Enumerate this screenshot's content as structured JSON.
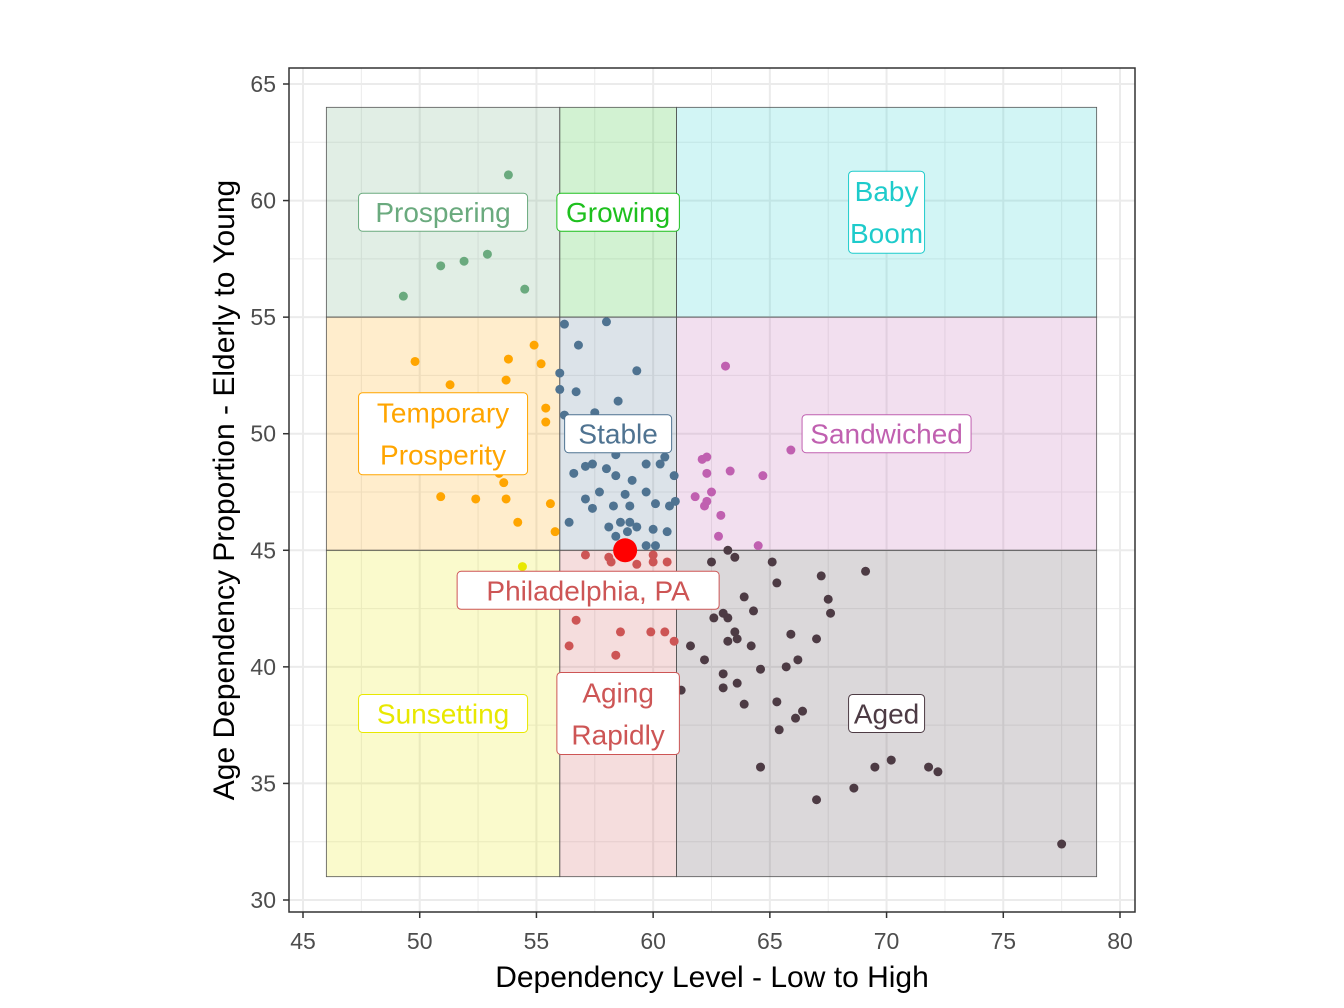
{
  "chart_data": {
    "type": "scatter",
    "title": "",
    "xlabel": "Dependency Level - Low to High",
    "ylabel": "Age Dependency Proportion - Elderly to Young",
    "xlim": [
      45,
      80
    ],
    "ylim": [
      30,
      65
    ],
    "xticks": [
      45,
      50,
      55,
      60,
      65,
      70,
      75,
      80
    ],
    "yticks": [
      30,
      35,
      40,
      45,
      50,
      55,
      60,
      65
    ],
    "grid": true,
    "regions": [
      {
        "name": "Prospering",
        "lines": [
          "Prospering"
        ],
        "color": "#6aaa7e",
        "xmin": 46,
        "xmax": 56,
        "ymin": 55,
        "ymax": 64,
        "points": [
          [
            53.8,
            61.1
          ],
          [
            54.4,
            59.8
          ],
          [
            50.9,
            57.2
          ],
          [
            51.9,
            57.4
          ],
          [
            52.9,
            57.7
          ],
          [
            54.5,
            56.2
          ],
          [
            49.3,
            55.9
          ]
        ]
      },
      {
        "name": "Growing",
        "lines": [
          "Growing"
        ],
        "color": "#1ec01e",
        "xmin": 56,
        "xmax": 61,
        "ymin": 55,
        "ymax": 64,
        "points": []
      },
      {
        "name": "Baby Boom",
        "lines": [
          "Baby",
          "Boom"
        ],
        "color": "#1ecbcb",
        "xmin": 61,
        "xmax": 79,
        "ymin": 55,
        "ymax": 64,
        "points": []
      },
      {
        "name": "Temporary Prosperity",
        "lines": [
          "Temporary",
          "Prosperity"
        ],
        "color": "#ffa500",
        "xmin": 46,
        "xmax": 56,
        "ymin": 45,
        "ymax": 55,
        "points": [
          [
            49.8,
            53.1
          ],
          [
            54.9,
            53.8
          ],
          [
            53.8,
            53.2
          ],
          [
            55.2,
            53.0
          ],
          [
            53.7,
            52.3
          ],
          [
            51.3,
            52.1
          ],
          [
            55.4,
            51.1
          ],
          [
            55.4,
            50.5
          ],
          [
            53.6,
            47.9
          ],
          [
            53.4,
            48.3
          ],
          [
            50.9,
            47.3
          ],
          [
            52.4,
            47.2
          ],
          [
            53.7,
            47.2
          ],
          [
            55.6,
            47.0
          ],
          [
            54.2,
            46.2
          ],
          [
            55.8,
            45.8
          ]
        ]
      },
      {
        "name": "Stable",
        "lines": [
          "Stable"
        ],
        "color": "#4f7391",
        "xmin": 56,
        "xmax": 61,
        "ymin": 45,
        "ymax": 55,
        "points": [
          [
            56.2,
            54.7
          ],
          [
            58.0,
            54.8
          ],
          [
            56.8,
            53.8
          ],
          [
            59.3,
            52.7
          ],
          [
            56.0,
            52.6
          ],
          [
            56.0,
            51.9
          ],
          [
            56.7,
            51.8
          ],
          [
            58.5,
            51.4
          ],
          [
            56.2,
            50.8
          ],
          [
            57.5,
            50.9
          ],
          [
            58.4,
            49.1
          ],
          [
            60.5,
            49.0
          ],
          [
            60.3,
            48.7
          ],
          [
            59.7,
            48.7
          ],
          [
            57.4,
            48.7
          ],
          [
            57.1,
            48.6
          ],
          [
            58.0,
            48.5
          ],
          [
            56.6,
            48.3
          ],
          [
            58.4,
            48.2
          ],
          [
            59.1,
            48.0
          ],
          [
            60.9,
            48.2
          ],
          [
            57.7,
            47.5
          ],
          [
            58.8,
            47.4
          ],
          [
            59.7,
            47.5
          ],
          [
            57.1,
            47.2
          ],
          [
            57.4,
            46.8
          ],
          [
            58.3,
            46.9
          ],
          [
            59.0,
            46.9
          ],
          [
            60.1,
            47.0
          ],
          [
            60.7,
            46.9
          ],
          [
            60.95,
            47.1
          ],
          [
            56.4,
            46.2
          ],
          [
            58.1,
            46.0
          ],
          [
            58.6,
            46.2
          ],
          [
            59.0,
            46.2
          ],
          [
            59.3,
            46.0
          ],
          [
            58.4,
            45.6
          ],
          [
            58.9,
            45.8
          ],
          [
            60.0,
            45.9
          ],
          [
            60.6,
            45.8
          ],
          [
            59.7,
            45.2
          ],
          [
            60.1,
            45.2
          ]
        ]
      },
      {
        "name": "Sandwiched",
        "lines": [
          "Sandwiched"
        ],
        "color": "#c060b0",
        "xmin": 61,
        "xmax": 79,
        "ymin": 45,
        "ymax": 55,
        "points": [
          [
            63.1,
            52.9
          ],
          [
            62.3,
            49.0
          ],
          [
            62.1,
            48.9
          ],
          [
            62.3,
            48.3
          ],
          [
            63.3,
            48.4
          ],
          [
            64.7,
            48.2
          ],
          [
            65.9,
            49.3
          ],
          [
            61.8,
            47.3
          ],
          [
            62.5,
            47.5
          ],
          [
            62.3,
            47.1
          ],
          [
            62.2,
            46.9
          ],
          [
            62.9,
            46.5
          ],
          [
            62.8,
            45.6
          ],
          [
            64.5,
            45.2
          ]
        ]
      },
      {
        "name": "Sunsetting",
        "lines": [
          "Sunsetting"
        ],
        "color": "#e8e800",
        "xmin": 46,
        "xmax": 56,
        "ymin": 31,
        "ymax": 45,
        "points": [
          [
            54.4,
            44.3
          ]
        ]
      },
      {
        "name": "Aging Rapidly",
        "lines": [
          "Aging",
          "Rapidly"
        ],
        "color": "#cd5555",
        "xmin": 56,
        "xmax": 61,
        "ymin": 31,
        "ymax": 45,
        "points": [
          [
            57.1,
            44.8
          ],
          [
            58.1,
            44.7
          ],
          [
            58.2,
            44.5
          ],
          [
            59.3,
            44.4
          ],
          [
            60.0,
            44.8
          ],
          [
            60.0,
            44.5
          ],
          [
            60.6,
            44.5
          ],
          [
            56.7,
            42.0
          ],
          [
            58.6,
            41.5
          ],
          [
            59.9,
            41.5
          ],
          [
            60.5,
            41.5
          ],
          [
            60.9,
            41.1
          ],
          [
            56.4,
            40.9
          ],
          [
            58.4,
            40.5
          ]
        ]
      },
      {
        "name": "Aged",
        "lines": [
          "Aged"
        ],
        "color": "#4d3b44",
        "xmin": 61,
        "xmax": 79,
        "ymin": 31,
        "ymax": 45,
        "points": [
          [
            63.2,
            45.0
          ],
          [
            63.5,
            44.7
          ],
          [
            62.5,
            44.5
          ],
          [
            65.1,
            44.5
          ],
          [
            69.1,
            44.1
          ],
          [
            67.2,
            43.9
          ],
          [
            62.3,
            43.9
          ],
          [
            62.4,
            43.6
          ],
          [
            65.3,
            43.6
          ],
          [
            67.5,
            42.9
          ],
          [
            63.9,
            43.0
          ],
          [
            67.6,
            42.3
          ],
          [
            64.3,
            42.4
          ],
          [
            63.0,
            42.3
          ],
          [
            63.2,
            42.1
          ],
          [
            62.6,
            42.1
          ],
          [
            63.5,
            41.5
          ],
          [
            63.6,
            41.2
          ],
          [
            63.2,
            41.1
          ],
          [
            65.9,
            41.4
          ],
          [
            67.0,
            41.2
          ],
          [
            64.2,
            40.9
          ],
          [
            61.6,
            40.9
          ],
          [
            62.2,
            40.3
          ],
          [
            64.6,
            39.9
          ],
          [
            65.7,
            40.0
          ],
          [
            66.2,
            40.3
          ],
          [
            63.0,
            39.7
          ],
          [
            63.6,
            39.3
          ],
          [
            63.0,
            39.1
          ],
          [
            61.2,
            39.0
          ],
          [
            63.9,
            38.4
          ],
          [
            65.3,
            38.5
          ],
          [
            66.4,
            38.1
          ],
          [
            66.1,
            37.8
          ],
          [
            65.4,
            37.3
          ],
          [
            64.6,
            35.7
          ],
          [
            69.5,
            35.7
          ],
          [
            70.2,
            36.0
          ],
          [
            68.6,
            34.8
          ],
          [
            67.0,
            34.3
          ],
          [
            71.8,
            35.7
          ],
          [
            72.2,
            35.5
          ],
          [
            77.5,
            32.4
          ]
        ]
      }
    ],
    "highlight": {
      "label": "Philadelphia, PA",
      "x": 58.8,
      "y": 45.0,
      "color": "#ff0000",
      "label_color": "#cd5555"
    }
  }
}
